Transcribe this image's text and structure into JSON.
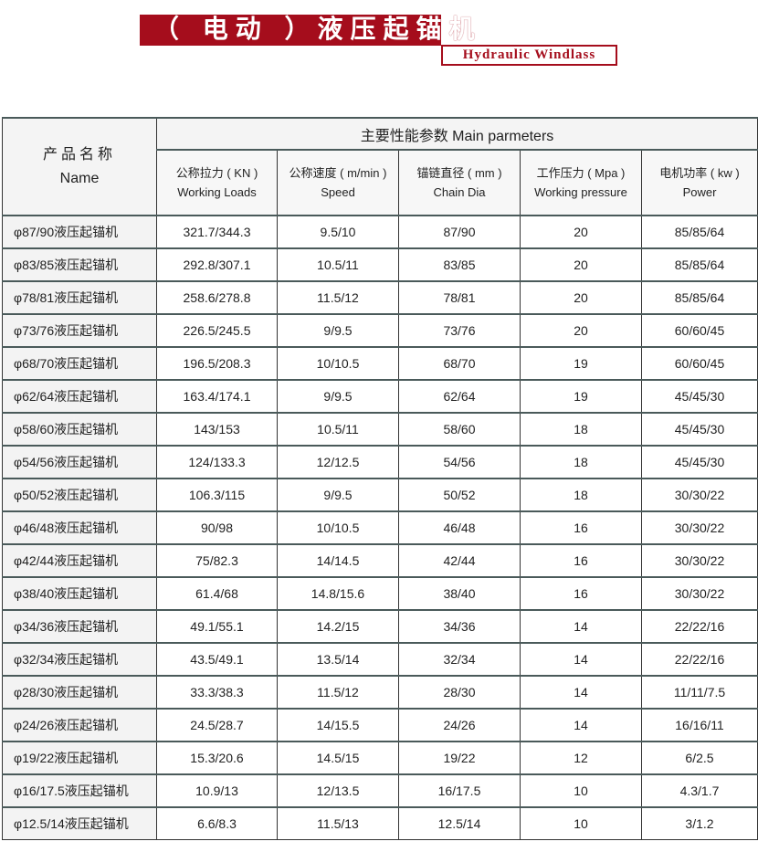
{
  "header": {
    "title": "（ 电动 ）液压起锚机",
    "subtitle": "Hydraulic Windlass",
    "accent": "#a50d1c"
  },
  "table": {
    "name_header_cn": "产品名称",
    "name_header_en": "Name",
    "group_header": "主要性能参数  Main parmeters",
    "columns": [
      {
        "cn": "公称拉力 ( KN )",
        "en": "Working Loads"
      },
      {
        "cn": "公称速度 ( m/min )",
        "en": "Speed"
      },
      {
        "cn": "锚链直径 ( mm )",
        "en": "Chain Dia"
      },
      {
        "cn": "工作压力 ( Mpa )",
        "en": "Working pressure"
      },
      {
        "cn": "电机功率 ( kw )",
        "en": "Power"
      }
    ],
    "rows": [
      [
        "φ87/90液压起锚机",
        "321.7/344.3",
        "9.5/10",
        "87/90",
        "20",
        "85/85/64"
      ],
      [
        "φ83/85液压起锚机",
        "292.8/307.1",
        "10.5/11",
        "83/85",
        "20",
        "85/85/64"
      ],
      [
        "φ78/81液压起锚机",
        "258.6/278.8",
        "11.5/12",
        "78/81",
        "20",
        "85/85/64"
      ],
      [
        "φ73/76液压起锚机",
        "226.5/245.5",
        "9/9.5",
        "73/76",
        "20",
        "60/60/45"
      ],
      [
        "φ68/70液压起锚机",
        "196.5/208.3",
        "10/10.5",
        "68/70",
        "19",
        "60/60/45"
      ],
      [
        "φ62/64液压起锚机",
        "163.4/174.1",
        "9/9.5",
        "62/64",
        "19",
        "45/45/30"
      ],
      [
        "φ58/60液压起锚机",
        "143/153",
        "10.5/11",
        "58/60",
        "18",
        "45/45/30"
      ],
      [
        "φ54/56液压起锚机",
        "124/133.3",
        "12/12.5",
        "54/56",
        "18",
        "45/45/30"
      ],
      [
        "φ50/52液压起锚机",
        "106.3/115",
        "9/9.5",
        "50/52",
        "18",
        "30/30/22"
      ],
      [
        "φ46/48液压起锚机",
        "90/98",
        "10/10.5",
        "46/48",
        "16",
        "30/30/22"
      ],
      [
        "φ42/44液压起锚机",
        "75/82.3",
        "14/14.5",
        "42/44",
        "16",
        "30/30/22"
      ],
      [
        "φ38/40液压起锚机",
        "61.4/68",
        "14.8/15.6",
        "38/40",
        "16",
        "30/30/22"
      ],
      [
        "φ34/36液压起锚机",
        "49.1/55.1",
        "14.2/15",
        "34/36",
        "14",
        "22/22/16"
      ],
      [
        "φ32/34液压起锚机",
        "43.5/49.1",
        "13.5/14",
        "32/34",
        "14",
        "22/22/16"
      ],
      [
        "φ28/30液压起锚机",
        "33.3/38.3",
        "11.5/12",
        "28/30",
        "14",
        "11/11/7.5"
      ],
      [
        "φ24/26液压起锚机",
        "24.5/28.7",
        "14/15.5",
        "24/26",
        "14",
        "16/16/11"
      ],
      [
        "φ19/22液压起锚机",
        "15.3/20.6",
        "14.5/15",
        "19/22",
        "12",
        "6/2.5"
      ],
      [
        "φ16/17.5液压起锚机",
        "10.9/13",
        "12/13.5",
        "16/17.5",
        "10",
        "4.3/1.7"
      ],
      [
        "φ12.5/14液压起锚机",
        "6.6/8.3",
        "11.5/13",
        "12.5/14",
        "10",
        "3/1.2"
      ]
    ]
  }
}
